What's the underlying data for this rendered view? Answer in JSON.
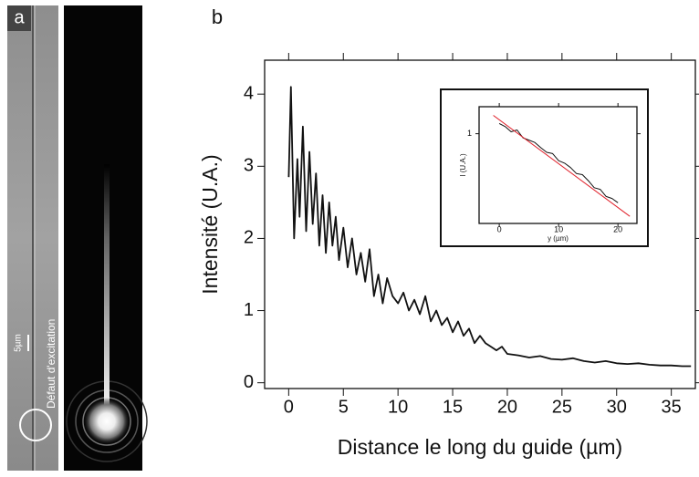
{
  "panel_a": {
    "label": "a",
    "scale_bar": "5µm",
    "annotation": "Défaut d'excitation"
  },
  "chart_data": [
    {
      "type": "line",
      "panel_label": "b",
      "x_label": "Distance le long du guide (µm)",
      "y_label": "Intensité (U.A.)",
      "xlim": [
        -2.2,
        37.2
      ],
      "ylim": [
        -0.08,
        4.47
      ],
      "xticks": [
        0,
        5,
        10,
        15,
        20,
        25,
        30,
        35
      ],
      "yticks": [
        0,
        1,
        2,
        3,
        4
      ],
      "mirror_ticks": true,
      "series": [
        {
          "color": "#111111",
          "x": [
            0,
            0.2,
            0.5,
            0.8,
            1.0,
            1.3,
            1.6,
            1.9,
            2.2,
            2.5,
            2.8,
            3.1,
            3.4,
            3.7,
            4.0,
            4.3,
            4.6,
            5.0,
            5.4,
            5.8,
            6.2,
            6.6,
            7.0,
            7.4,
            7.8,
            8.2,
            8.6,
            9.0,
            9.5,
            10,
            10.5,
            11,
            11.5,
            12,
            12.5,
            13,
            13.5,
            14,
            14.5,
            15,
            15.5,
            16,
            16.5,
            17,
            17.5,
            18,
            18.5,
            19,
            19.5,
            20,
            21,
            22,
            23,
            24,
            25,
            26,
            27,
            28,
            29,
            30,
            31,
            32,
            33,
            34,
            35,
            36,
            36.8
          ],
          "values": [
            2.85,
            4.1,
            2.0,
            3.1,
            2.3,
            3.55,
            2.1,
            3.2,
            2.2,
            2.9,
            1.9,
            2.6,
            1.8,
            2.5,
            1.9,
            2.3,
            1.7,
            2.15,
            1.6,
            2.0,
            1.5,
            1.8,
            1.4,
            1.85,
            1.2,
            1.5,
            1.1,
            1.45,
            1.2,
            1.1,
            1.25,
            1.0,
            1.15,
            0.95,
            1.2,
            0.85,
            1.0,
            0.8,
            0.9,
            0.7,
            0.85,
            0.65,
            0.75,
            0.55,
            0.65,
            0.55,
            0.5,
            0.45,
            0.5,
            0.4,
            0.38,
            0.35,
            0.37,
            0.33,
            0.32,
            0.34,
            0.3,
            0.28,
            0.3,
            0.27,
            0.26,
            0.27,
            0.25,
            0.24,
            0.24,
            0.23,
            0.23
          ]
        }
      ]
    },
    {
      "type": "line",
      "x_label": "y (µm)",
      "y_label": "I (U.A.)",
      "log_y": true,
      "xlim": [
        -3.4,
        23.2
      ],
      "ylim": [
        0.1,
        2
      ],
      "xticks": [
        0,
        10,
        20
      ],
      "yticks": [
        1
      ],
      "mirror_ticks": true,
      "series": [
        {
          "color": "#111111",
          "x": [
            0,
            1,
            2,
            3,
            4,
            5,
            6,
            7,
            8,
            9,
            10,
            11,
            12,
            13,
            14,
            15,
            16,
            17,
            18,
            19,
            20
          ],
          "values": [
            1.3,
            1.2,
            1.05,
            1.1,
            0.9,
            0.85,
            0.8,
            0.7,
            0.62,
            0.6,
            0.5,
            0.47,
            0.42,
            0.36,
            0.35,
            0.3,
            0.25,
            0.24,
            0.2,
            0.19,
            0.17
          ]
        },
        {
          "color": "#e0202a",
          "x": [
            -1,
            22
          ],
          "values": [
            1.6,
            0.12
          ]
        }
      ]
    }
  ]
}
